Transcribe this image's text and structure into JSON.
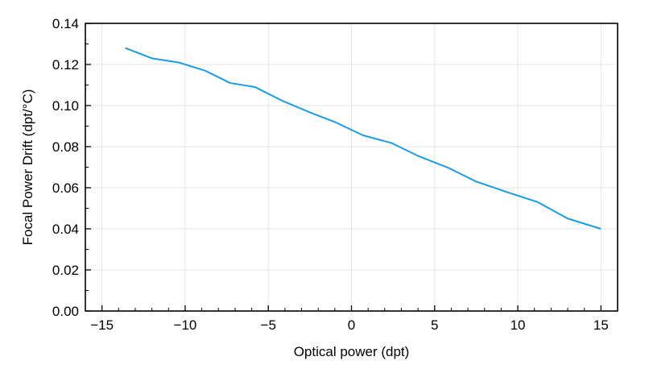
{
  "chart_data": {
    "type": "line",
    "title": "",
    "xlabel": "Optical power (dpt)",
    "ylabel": "Focal Power Drift (dpt/°C)",
    "xlim": [
      -16,
      16
    ],
    "ylim": [
      0,
      0.14
    ],
    "x_ticks": [
      -15,
      -10,
      -5,
      0,
      5,
      10,
      15
    ],
    "x_tick_labels": [
      "−15",
      "−10",
      "−5",
      "0",
      "5",
      "10",
      "15"
    ],
    "y_ticks": [
      0,
      0.02,
      0.04,
      0.06,
      0.08,
      0.1,
      0.12,
      0.14
    ],
    "y_tick_labels": [
      "0.00",
      "0.02",
      "0.04",
      "0.06",
      "0.08",
      "0.10",
      "0.12",
      "0.14"
    ],
    "grid": true,
    "legend": "none",
    "series": [
      {
        "color": "#1a9be8",
        "x": [
          -13.6,
          -12.0,
          -10.4,
          -8.8,
          -7.3,
          -5.8,
          -4.2,
          -2.6,
          -1.0,
          0.7,
          2.4,
          4.0,
          5.8,
          7.5,
          9.3,
          11.2,
          13.0,
          15.0
        ],
        "y": [
          0.128,
          0.123,
          0.121,
          0.117,
          0.111,
          0.109,
          0.1025,
          0.097,
          0.092,
          0.0855,
          0.0818,
          0.0755,
          0.0698,
          0.063,
          0.058,
          0.053,
          0.045,
          0.04
        ]
      }
    ]
  }
}
